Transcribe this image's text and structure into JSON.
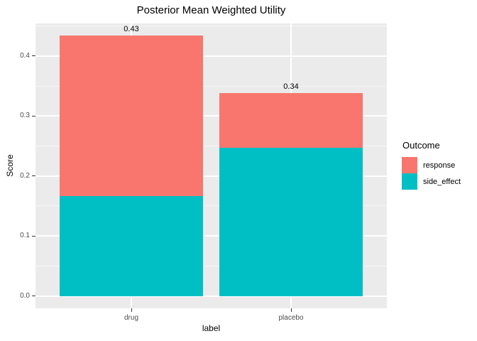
{
  "title": "Posterior Mean Weighted Utility",
  "axes": {
    "x_title": "label",
    "y_title": "Score"
  },
  "legend": {
    "title": "Outcome",
    "items": [
      {
        "label": "response",
        "color": "#F8766D"
      },
      {
        "label": "side_effect",
        "color": "#00BFC4"
      }
    ]
  },
  "colors": {
    "panel_background": "#EBEBEB",
    "gridline": "#FFFFFF",
    "tick_mark": "#333333",
    "tick_text": "#4D4D4D",
    "response": "#F8766D",
    "side_effect": "#00BFC4"
  },
  "chart_data": {
    "type": "bar",
    "stacked": true,
    "title": "Posterior Mean Weighted Utility",
    "xlabel": "label",
    "ylabel": "Score",
    "categories": [
      "drug",
      "placebo"
    ],
    "series": [
      {
        "name": "side_effect",
        "color": "#00BFC4",
        "values": [
          0.167,
          0.247
        ]
      },
      {
        "name": "response",
        "color": "#F8766D",
        "values": [
          0.267,
          0.091
        ]
      }
    ],
    "totals": [
      0.434,
      0.338
    ],
    "total_labels": [
      "0.43",
      "0.34"
    ],
    "ylim": [
      -0.0207,
      0.4545
    ],
    "y_major_ticks": [
      0.0,
      0.1,
      0.2,
      0.3,
      0.4
    ],
    "y_tick_labels": [
      "0.0",
      "0.1",
      "0.2",
      "0.3",
      "0.4"
    ],
    "y_minor_ticks": [
      0.05,
      0.15,
      0.25,
      0.35,
      0.45
    ],
    "grid": true,
    "legend_position": "right",
    "legend_title": "Outcome"
  }
}
